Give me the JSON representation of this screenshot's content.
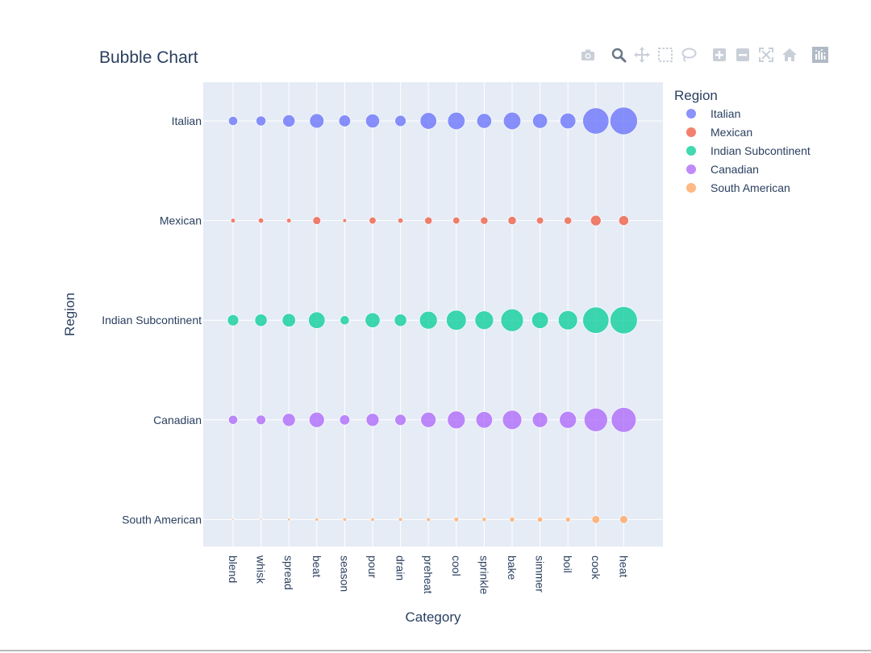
{
  "chart_data": {
    "type": "scatter",
    "mode": "bubble",
    "title": "Bubble Chart",
    "xlabel": "Category",
    "ylabel": "Region",
    "legend_title": "Region",
    "legend_position": "right",
    "grid": true,
    "categories": [
      "blend",
      "whisk",
      "spread",
      "beat",
      "season",
      "pour",
      "drain",
      "preheat",
      "cool",
      "sprinkle",
      "bake",
      "simmer",
      "boil",
      "cook",
      "heat"
    ],
    "regions": [
      "Italian",
      "Mexican",
      "Indian Subcontinent",
      "Canadian",
      "South American"
    ],
    "series": [
      {
        "name": "Italian",
        "color": "#636efa",
        "values": [
          12,
          14,
          22,
          30,
          20,
          28,
          18,
          40,
          44,
          32,
          44,
          32,
          36,
          100,
          110
        ]
      },
      {
        "name": "Mexican",
        "color": "#ef553b",
        "values": [
          3,
          4,
          3,
          9,
          2,
          7,
          4,
          8,
          7,
          8,
          10,
          7,
          8,
          16,
          14
        ]
      },
      {
        "name": "Indian Subcontinent",
        "color": "#00cc96",
        "values": [
          18,
          22,
          26,
          40,
          12,
          32,
          22,
          46,
          58,
          50,
          74,
          40,
          54,
          100,
          108
        ]
      },
      {
        "name": "Canadian",
        "color": "#ab63fa",
        "values": [
          12,
          13,
          24,
          34,
          15,
          24,
          18,
          34,
          46,
          40,
          54,
          34,
          42,
          80,
          90
        ]
      },
      {
        "name": "South American",
        "color": "#ffa15a",
        "values": [
          0.3,
          0.5,
          1,
          1.5,
          1.8,
          1.8,
          2,
          2,
          3,
          2.6,
          3.5,
          4,
          3.4,
          9,
          9
        ]
      }
    ]
  },
  "modebar": {
    "icons": [
      "camera-icon",
      "zoom-icon",
      "pan-icon",
      "box-select-icon",
      "lasso-icon",
      "zoom-in-icon",
      "zoom-out-icon",
      "autoscale-icon",
      "reset-axes-icon",
      "plotly-logo-icon"
    ]
  }
}
